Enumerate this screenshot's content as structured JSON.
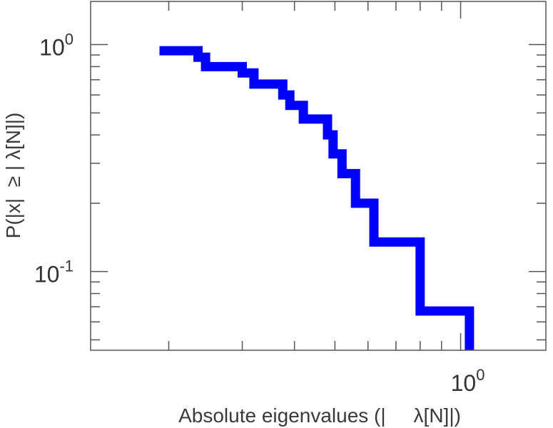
{
  "chart_data": {
    "type": "line",
    "title": "",
    "xlabel": "Absolute eigenvalues (|     λ[N]|)",
    "ylabel": "P(|x|  ≥ | λ[N]|)",
    "xscale": "log",
    "yscale": "log",
    "xlim": [
      0.13,
      1.6
    ],
    "ylim": [
      0.045,
      1.55
    ],
    "grid": false,
    "legend": "none",
    "line_style": "steps",
    "color": "#0000ff",
    "x_ticks": [
      {
        "base": "10",
        "exp": "0",
        "value": 1.0
      }
    ],
    "y_ticks": [
      {
        "base": "10",
        "exp": "0",
        "value": 1.0
      },
      {
        "base": "10",
        "exp": "-1",
        "value": 0.1
      }
    ],
    "series": [
      {
        "x": [
          0.19,
          0.235,
          0.245,
          0.3,
          0.32,
          0.375,
          0.39,
          0.42,
          0.48,
          0.495,
          0.52,
          0.56,
          0.62,
          0.8,
          1.05,
          1.05
        ],
        "y": [
          0.94,
          0.88,
          0.8,
          0.75,
          0.67,
          0.6,
          0.54,
          0.47,
          0.4,
          0.33,
          0.27,
          0.2,
          0.135,
          0.067,
          0.067,
          0.045
        ]
      }
    ]
  }
}
